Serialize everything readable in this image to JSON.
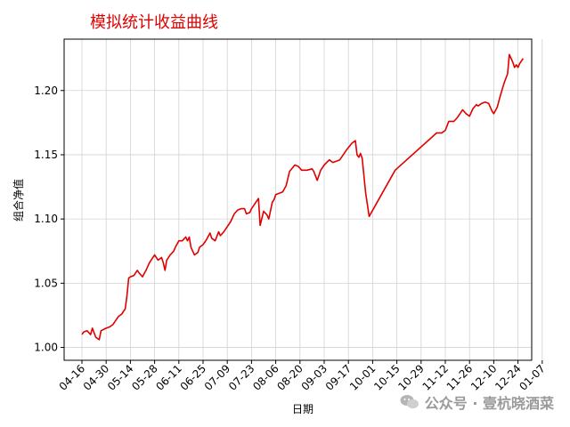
{
  "chart_data": {
    "type": "line",
    "title": "模拟统计收益曲线",
    "xlabel": "日期",
    "ylabel": "组合净值",
    "x_ticks": [
      "04-16",
      "04-30",
      "05-14",
      "05-28",
      "06-11",
      "06-25",
      "07-09",
      "07-23",
      "08-06",
      "08-20",
      "09-03",
      "09-17",
      "10-01",
      "10-15",
      "10-29",
      "11-12",
      "11-26",
      "12-10",
      "12-24",
      "01-07"
    ],
    "y_ticks": [
      "1.00",
      "1.05",
      "1.10",
      "1.15",
      "1.20"
    ],
    "ylim": [
      0.99,
      1.24
    ],
    "grid": true,
    "line_color": "#e00000",
    "title_color": "#e00000",
    "series": [
      {
        "points": [
          [
            "04-16",
            1.01
          ],
          [
            "04-17",
            1.012
          ],
          [
            "04-19",
            1.013
          ],
          [
            "04-21",
            1.01
          ],
          [
            "04-22",
            1.015
          ],
          [
            "04-24",
            1.008
          ],
          [
            "04-26",
            1.006
          ],
          [
            "04-27",
            1.013
          ],
          [
            "04-30",
            1.015
          ],
          [
            "05-02",
            1.016
          ],
          [
            "05-04",
            1.018
          ],
          [
            "05-06",
            1.022
          ],
          [
            "05-07",
            1.024
          ],
          [
            "05-09",
            1.026
          ],
          [
            "05-11",
            1.03
          ],
          [
            "05-12",
            1.04
          ],
          [
            "05-13",
            1.054
          ],
          [
            "05-14",
            1.055
          ],
          [
            "05-16",
            1.056
          ],
          [
            "05-18",
            1.06
          ],
          [
            "05-19",
            1.058
          ],
          [
            "05-21",
            1.055
          ],
          [
            "05-23",
            1.06
          ],
          [
            "05-25",
            1.066
          ],
          [
            "05-26",
            1.068
          ],
          [
            "05-28",
            1.072
          ],
          [
            "05-30",
            1.068
          ],
          [
            "06-01",
            1.07
          ],
          [
            "06-02",
            1.066
          ],
          [
            "06-03",
            1.06
          ],
          [
            "06-04",
            1.068
          ],
          [
            "06-06",
            1.072
          ],
          [
            "06-08",
            1.075
          ],
          [
            "06-09",
            1.078
          ],
          [
            "06-11",
            1.083
          ],
          [
            "06-13",
            1.083
          ],
          [
            "06-15",
            1.086
          ],
          [
            "06-16",
            1.083
          ],
          [
            "06-17",
            1.086
          ],
          [
            "06-18",
            1.078
          ],
          [
            "06-20",
            1.072
          ],
          [
            "06-22",
            1.074
          ],
          [
            "06-23",
            1.078
          ],
          [
            "06-25",
            1.08
          ],
          [
            "06-27",
            1.084
          ],
          [
            "06-29",
            1.089
          ],
          [
            "06-30",
            1.085
          ],
          [
            "07-02",
            1.083
          ],
          [
            "07-04",
            1.09
          ],
          [
            "07-05",
            1.087
          ],
          [
            "07-07",
            1.09
          ],
          [
            "07-09",
            1.094
          ],
          [
            "07-11",
            1.098
          ],
          [
            "07-13",
            1.104
          ],
          [
            "07-15",
            1.107
          ],
          [
            "07-17",
            1.108
          ],
          [
            "07-19",
            1.108
          ],
          [
            "07-20",
            1.104
          ],
          [
            "07-22",
            1.105
          ],
          [
            "07-23",
            1.108
          ],
          [
            "07-25",
            1.112
          ],
          [
            "07-27",
            1.116
          ],
          [
            "07-28",
            1.095
          ],
          [
            "07-30",
            1.106
          ],
          [
            "08-01",
            1.103
          ],
          [
            "08-02",
            1.1
          ],
          [
            "08-04",
            1.113
          ],
          [
            "08-05",
            1.115
          ],
          [
            "08-06",
            1.119
          ],
          [
            "08-08",
            1.12
          ],
          [
            "08-10",
            1.121
          ],
          [
            "08-12",
            1.126
          ],
          [
            "08-14",
            1.137
          ],
          [
            "08-17",
            1.142
          ],
          [
            "08-19",
            1.141
          ],
          [
            "08-21",
            1.138
          ],
          [
            "08-24",
            1.138
          ],
          [
            "08-27",
            1.139
          ],
          [
            "08-28",
            1.137
          ],
          [
            "08-30",
            1.13
          ],
          [
            "09-01",
            1.138
          ],
          [
            "09-03",
            1.142
          ],
          [
            "09-06",
            1.146
          ],
          [
            "09-08",
            1.144
          ],
          [
            "09-10",
            1.145
          ],
          [
            "09-12",
            1.146
          ],
          [
            "09-16",
            1.154
          ],
          [
            "09-19",
            1.159
          ],
          [
            "09-21",
            1.161
          ],
          [
            "09-22",
            1.15
          ],
          [
            "09-23",
            1.148
          ],
          [
            "09-24",
            1.151
          ],
          [
            "09-25",
            1.147
          ],
          [
            "09-27",
            1.12
          ],
          [
            "09-29",
            1.102
          ],
          [
            "10-14",
            1.138
          ],
          [
            "11-07",
            1.167
          ],
          [
            "11-10",
            1.167
          ],
          [
            "11-12",
            1.169
          ],
          [
            "11-14",
            1.176
          ],
          [
            "11-17",
            1.176
          ],
          [
            "11-19",
            1.179
          ],
          [
            "11-22",
            1.185
          ],
          [
            "11-24",
            1.182
          ],
          [
            "11-26",
            1.18
          ],
          [
            "11-28",
            1.186
          ],
          [
            "11-30",
            1.189
          ],
          [
            "12-01",
            1.188
          ],
          [
            "12-03",
            1.19
          ],
          [
            "12-05",
            1.191
          ],
          [
            "12-07",
            1.19
          ],
          [
            "12-09",
            1.184
          ],
          [
            "12-10",
            1.182
          ],
          [
            "12-12",
            1.187
          ],
          [
            "12-14",
            1.197
          ],
          [
            "12-16",
            1.206
          ],
          [
            "12-18",
            1.213
          ],
          [
            "12-19",
            1.228
          ],
          [
            "12-21",
            1.222
          ],
          [
            "12-22",
            1.218
          ],
          [
            "12-23",
            1.22
          ],
          [
            "12-24",
            1.218
          ],
          [
            "12-25",
            1.221
          ],
          [
            "12-26",
            1.223
          ],
          [
            "12-27",
            1.225
          ]
        ]
      }
    ]
  },
  "watermark": {
    "text": "公众号 · 壹杭晓酒菜"
  }
}
